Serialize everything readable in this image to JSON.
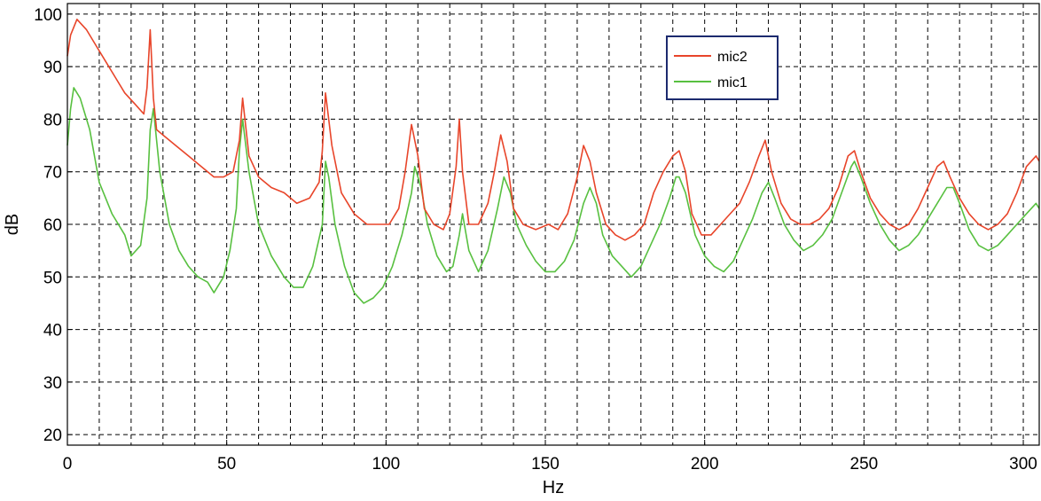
{
  "chart_data": {
    "type": "line",
    "title": "",
    "xlabel": "Hz",
    "ylabel": "dB",
    "xlim": [
      0,
      305
    ],
    "ylim": [
      18,
      102
    ],
    "xticks": [
      0,
      50,
      100,
      150,
      200,
      250,
      300
    ],
    "xtick_labels": [
      "0",
      "50",
      "100",
      "150",
      "200",
      "250",
      "300"
    ],
    "yticks": [
      20,
      30,
      40,
      50,
      60,
      70,
      80,
      90,
      100
    ],
    "ytick_labels": [
      "20",
      "30",
      "40",
      "50",
      "60",
      "70",
      "80",
      "90",
      "100"
    ],
    "x_minor_gridlines": [
      10,
      20,
      30,
      40,
      60,
      70,
      80,
      90,
      110,
      120,
      130,
      140,
      160,
      170,
      180,
      190,
      210,
      220,
      230,
      240,
      260,
      270,
      280,
      290
    ],
    "grid": true,
    "legend": "top-right",
    "series": [
      {
        "name": "mic2",
        "color": "#e8452a",
        "x": [
          0,
          1,
          3,
          6,
          9,
          12,
          15,
          18,
          21,
          24,
          25,
          26,
          27,
          28,
          30,
          34,
          38,
          42,
          46,
          49,
          52,
          54,
          55,
          57,
          60,
          64,
          68,
          72,
          76,
          79,
          80,
          81,
          83,
          86,
          90,
          94,
          98,
          101,
          104,
          106,
          108,
          110,
          112,
          115,
          118,
          120,
          122,
          123,
          124,
          126,
          129,
          132,
          134,
          136,
          138,
          140,
          143,
          147,
          151,
          154,
          157,
          160,
          162,
          164,
          166,
          169,
          172,
          175,
          178,
          181,
          184,
          187,
          190,
          192,
          194,
          196,
          199,
          202,
          205,
          208,
          211,
          214,
          217,
          219,
          221,
          224,
          227,
          230,
          233,
          236,
          239,
          242,
          245,
          247,
          249,
          252,
          255,
          258,
          261,
          264,
          267,
          270,
          273,
          275,
          277,
          280,
          283,
          286,
          289,
          292,
          295,
          298,
          301,
          304,
          305
        ],
        "y": [
          92,
          96,
          99,
          97,
          94,
          91,
          88,
          85,
          83,
          81,
          86,
          97,
          84,
          78,
          77,
          75,
          73,
          71,
          69,
          69,
          70,
          76,
          84,
          73,
          69,
          67,
          66,
          64,
          65,
          68,
          74,
          85,
          75,
          66,
          62,
          60,
          60,
          60,
          63,
          70,
          79,
          73,
          63,
          60,
          59,
          62,
          71,
          80,
          70,
          60,
          60,
          64,
          70,
          77,
          72,
          63,
          60,
          59,
          60,
          59,
          62,
          69,
          75,
          72,
          66,
          60,
          58,
          57,
          58,
          60,
          66,
          70,
          73,
          74,
          70,
          62,
          58,
          58,
          60,
          62,
          64,
          68,
          73,
          76,
          70,
          64,
          61,
          60,
          60,
          61,
          63,
          67,
          73,
          74,
          70,
          65,
          62,
          60,
          59,
          60,
          63,
          67,
          71,
          72,
          69,
          65,
          62,
          60,
          59,
          60,
          62,
          66,
          71,
          73,
          72
        ]
      },
      {
        "name": "mic1",
        "color": "#58c040",
        "x": [
          0,
          1,
          2,
          4,
          7,
          10,
          14,
          18,
          20,
          23,
          25,
          26,
          27,
          29,
          32,
          35,
          38,
          41,
          44,
          46,
          49,
          51,
          53,
          54,
          55,
          57,
          60,
          64,
          68,
          71,
          74,
          77,
          80,
          81,
          82,
          84,
          87,
          90,
          93,
          96,
          99,
          102,
          105,
          108,
          109,
          111,
          113,
          116,
          119,
          121,
          123,
          124,
          126,
          129,
          132,
          135,
          137,
          139,
          141,
          144,
          147,
          150,
          153,
          156,
          159,
          162,
          164,
          166,
          168,
          171,
          174,
          177,
          180,
          183,
          186,
          189,
          191,
          192,
          194,
          197,
          200,
          203,
          206,
          209,
          212,
          215,
          218,
          220,
          222,
          225,
          228,
          231,
          234,
          237,
          240,
          243,
          246,
          247,
          249,
          252,
          255,
          258,
          261,
          264,
          267,
          270,
          273,
          276,
          278,
          280,
          283,
          286,
          289,
          292,
          295,
          298,
          301,
          304,
          305
        ],
        "y": [
          75,
          82,
          86,
          84,
          78,
          68,
          62,
          58,
          54,
          56,
          65,
          78,
          82,
          70,
          60,
          55,
          52,
          50,
          49,
          47,
          50,
          55,
          63,
          74,
          80,
          70,
          60,
          54,
          50,
          48,
          48,
          52,
          60,
          72,
          69,
          60,
          52,
          47,
          45,
          46,
          48,
          52,
          58,
          66,
          71,
          67,
          60,
          54,
          51,
          52,
          58,
          62,
          55,
          51,
          55,
          63,
          69,
          66,
          60,
          56,
          53,
          51,
          51,
          53,
          57,
          64,
          67,
          64,
          58,
          54,
          52,
          50,
          52,
          56,
          60,
          65,
          69,
          69,
          66,
          58,
          54,
          52,
          51,
          53,
          57,
          61,
          66,
          68,
          65,
          60,
          57,
          55,
          56,
          58,
          61,
          66,
          71,
          72,
          69,
          64,
          60,
          57,
          55,
          56,
          58,
          61,
          64,
          67,
          67,
          64,
          59,
          56,
          55,
          56,
          58,
          60,
          62,
          64,
          63
        ]
      }
    ]
  }
}
